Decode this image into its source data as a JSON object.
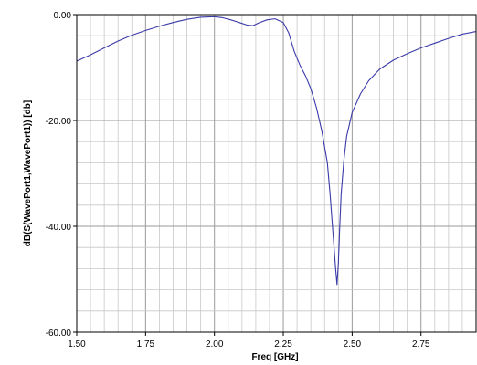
{
  "chart_data": {
    "type": "line",
    "xlabel": "Freq [GHz]",
    "ylabel": "dB(S(WavePort1,WavePort1)) [db]",
    "xlim": [
      1.5,
      2.95
    ],
    "ylim": [
      -60,
      0
    ],
    "x_ticks": [
      1.5,
      1.75,
      2.0,
      2.25,
      2.5,
      2.75
    ],
    "x_tick_labels": [
      "1.50",
      "1.75",
      "2.00",
      "2.25",
      "2.50",
      "2.75"
    ],
    "y_ticks": [
      0,
      -20,
      -40,
      -60
    ],
    "y_tick_labels": [
      "0.00",
      "-20.00",
      "-40.00",
      "-60.00"
    ],
    "x_minor_step": 0.05,
    "y_minor_step": 4,
    "grid": true,
    "series": [
      {
        "color": "#3a3aa8",
        "x": [
          1.5,
          1.55,
          1.6,
          1.65,
          1.7,
          1.75,
          1.8,
          1.85,
          1.9,
          1.95,
          2.0,
          2.03,
          2.06,
          2.09,
          2.12,
          2.14,
          2.16,
          2.19,
          2.22,
          2.25,
          2.27,
          2.29,
          2.31,
          2.33,
          2.35,
          2.37,
          2.39,
          2.41,
          2.42,
          2.43,
          2.44,
          2.445,
          2.45,
          2.455,
          2.46,
          2.47,
          2.48,
          2.5,
          2.53,
          2.56,
          2.6,
          2.65,
          2.7,
          2.75,
          2.8,
          2.85,
          2.9,
          2.95
        ],
        "y": [
          -8.8,
          -7.6,
          -6.3,
          -5.0,
          -3.9,
          -3.0,
          -2.2,
          -1.5,
          -0.9,
          -0.5,
          -0.4,
          -0.6,
          -1.0,
          -1.5,
          -2.0,
          -2.1,
          -1.6,
          -1.0,
          -0.8,
          -1.5,
          -3.5,
          -7.0,
          -9.5,
          -11.5,
          -14.0,
          -17.5,
          -22.0,
          -28.0,
          -34.0,
          -41.0,
          -48.0,
          -51.0,
          -47.0,
          -40.0,
          -34.0,
          -27.5,
          -23.0,
          -18.5,
          -15.0,
          -12.5,
          -10.3,
          -8.6,
          -7.4,
          -6.3,
          -5.4,
          -4.5,
          -3.7,
          -3.2
        ]
      }
    ]
  }
}
